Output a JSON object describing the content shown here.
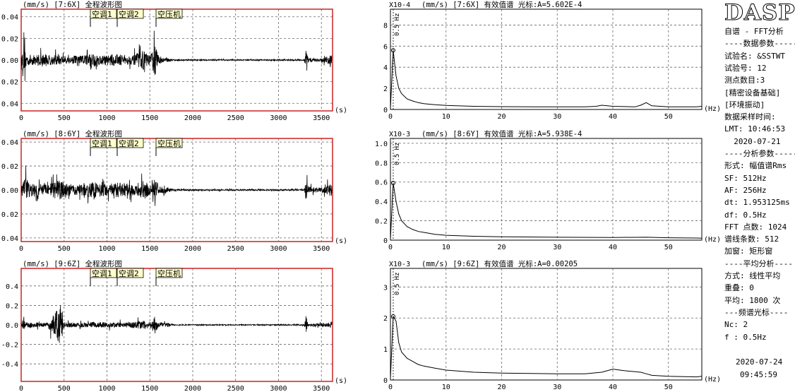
{
  "sidebar": {
    "logo": "DASP",
    "lines": [
      "自谱 - FFT分析",
      "----数据参数-----",
      "试验名: &SSTWT",
      "试验号: 12",
      "测点数目:3",
      "[精密设备基础]",
      "[环境振动]",
      "数据采样时间:",
      "LMT: 10:46:53",
      "  2020-07-21",
      "----分析参数-----",
      "形式: 幅值谱Rms",
      "SF: 512Hz",
      "AF: 256Hz",
      "dt: 1.953125ms",
      "df: 0.5Hz",
      "FFT 点数: 1024",
      "谱线条数: 512",
      "加窗: 矩形窗",
      "----平均分析----",
      "方式: 线性平均",
      "重叠: 0",
      "平均: 1800 次",
      "---频谱光标----",
      "Nc: 2",
      "f : 0.5Hz"
    ],
    "footer_date": "2020-07-24",
    "footer_time": "09:45:59"
  },
  "colors": {
    "frame": "#cc2222",
    "grid": "#666666",
    "trace": "#000000",
    "marker_bg": "#ffffcc"
  },
  "chart_data": [
    {
      "type": "line",
      "kind": "waveform",
      "title": "(mm/s) [7:6X] 全程波形图",
      "xlabel": "(s)",
      "xlim": [
        0,
        3630
      ],
      "ylim": [
        -0.047,
        0.047
      ],
      "xticks": [
        0,
        500,
        1000,
        1500,
        2000,
        2500,
        3000,
        3500
      ],
      "yticks": [
        0.04,
        0.02,
        0.0,
        -0.02,
        -0.04
      ],
      "ytick_labels": [
        "0.04",
        "0.02",
        "0.00",
        "-0.02",
        "-0.04"
      ],
      "markers": [
        {
          "label": "空调1",
          "x": 800
        },
        {
          "label": "空调2",
          "x": 1100
        },
        {
          "label": "空压机",
          "x": 1560
        }
      ],
      "envelope": [
        [
          0,
          0.008
        ],
        [
          30,
          0.03
        ],
        [
          60,
          0.012
        ],
        [
          150,
          0.01
        ],
        [
          250,
          0.014
        ],
        [
          350,
          0.01
        ],
        [
          450,
          0.01
        ],
        [
          550,
          0.008
        ],
        [
          700,
          0.01
        ],
        [
          850,
          0.014
        ],
        [
          900,
          0.01
        ],
        [
          1000,
          0.01
        ],
        [
          1100,
          0.013
        ],
        [
          1200,
          0.01
        ],
        [
          1300,
          0.009
        ],
        [
          1420,
          0.02
        ],
        [
          1500,
          0.01
        ],
        [
          1560,
          0.035
        ],
        [
          1600,
          0.008
        ],
        [
          1700,
          0.004
        ],
        [
          1800,
          0.0015
        ],
        [
          2500,
          0.0012
        ],
        [
          3300,
          0.0015
        ],
        [
          3320,
          0.025
        ],
        [
          3350,
          0.004
        ],
        [
          3500,
          0.003
        ],
        [
          3580,
          0.008
        ],
        [
          3620,
          0.01
        ]
      ]
    },
    {
      "type": "line",
      "kind": "spectrum",
      "title": "(mm/s) [7:6X] 有效值谱 光标:A=5.602E-4",
      "scale": "X10-4",
      "xlabel": "(Hz)",
      "xlim": [
        0,
        56
      ],
      "ylim": [
        0,
        9.5
      ],
      "xticks": [
        0,
        10,
        20,
        30,
        40,
        50
      ],
      "yticks": [
        0,
        2,
        4,
        6,
        8
      ],
      "ytick_labels": [
        "0",
        "2",
        "4",
        "6",
        "8"
      ],
      "cursor_label": "0.5 Hz",
      "cursor_x": 0.5,
      "x": [
        0,
        0.5,
        1,
        1.5,
        2,
        3,
        4,
        5,
        6,
        8,
        10,
        15,
        20,
        30,
        35,
        37,
        38,
        40,
        44,
        45,
        46,
        47,
        50,
        55,
        56
      ],
      "y": [
        0.1,
        5.6,
        3.2,
        2.0,
        1.5,
        1.0,
        0.8,
        0.65,
        0.55,
        0.45,
        0.38,
        0.3,
        0.27,
        0.25,
        0.25,
        0.3,
        0.4,
        0.3,
        0.25,
        0.4,
        0.65,
        0.35,
        0.25,
        0.25,
        0.3
      ]
    },
    {
      "type": "line",
      "kind": "waveform",
      "title": "(mm/s) [8:6Y] 全程波形图",
      "xlabel": "(s)",
      "xlim": [
        0,
        3630
      ],
      "ylim": [
        -0.043,
        0.043
      ],
      "xticks": [
        0,
        500,
        1000,
        1500,
        2000,
        2500,
        3000,
        3500
      ],
      "yticks": [
        0.04,
        0.02,
        0.0,
        -0.02,
        -0.04
      ],
      "ytick_labels": [
        "0.04",
        "0.02",
        "0.00",
        "-0.02",
        "-0.04"
      ],
      "markers": [
        {
          "label": "空调1",
          "x": 800
        },
        {
          "label": "空调2",
          "x": 1100
        },
        {
          "label": "空压机",
          "x": 1560
        }
      ],
      "envelope": [
        [
          0,
          0.006
        ],
        [
          30,
          0.018
        ],
        [
          60,
          0.03
        ],
        [
          100,
          0.012
        ],
        [
          200,
          0.012
        ],
        [
          300,
          0.01
        ],
        [
          460,
          0.02
        ],
        [
          550,
          0.01
        ],
        [
          700,
          0.01
        ],
        [
          850,
          0.015
        ],
        [
          1000,
          0.01
        ],
        [
          1100,
          0.014
        ],
        [
          1300,
          0.01
        ],
        [
          1440,
          0.018
        ],
        [
          1500,
          0.01
        ],
        [
          1560,
          0.03
        ],
        [
          1600,
          0.008
        ],
        [
          1700,
          0.005
        ],
        [
          1800,
          0.0015
        ],
        [
          2500,
          0.0012
        ],
        [
          3300,
          0.0015
        ],
        [
          3320,
          0.02
        ],
        [
          3350,
          0.006
        ],
        [
          3500,
          0.004
        ],
        [
          3580,
          0.01
        ],
        [
          3620,
          0.012
        ]
      ]
    },
    {
      "type": "line",
      "kind": "spectrum",
      "title": "(mm/s) [8:6Y] 有效值谱 光标:A=5.938E-4",
      "scale": "X10-3",
      "xlabel": "(Hz)",
      "xlim": [
        0,
        56
      ],
      "ylim": [
        0,
        1.05
      ],
      "xticks": [
        0,
        10,
        20,
        30,
        40,
        50
      ],
      "yticks": [
        0,
        0.2,
        0.4,
        0.6,
        0.8,
        1.0
      ],
      "ytick_labels": [
        "0",
        "0.2",
        "0.4",
        "0.6",
        "0.8",
        "1.0"
      ],
      "cursor_label": "0.5 Hz",
      "cursor_x": 0.5,
      "x": [
        0,
        0.5,
        1,
        1.5,
        2,
        3,
        4,
        5,
        6,
        8,
        10,
        15,
        20,
        30,
        40,
        46,
        50,
        55,
        56
      ],
      "y": [
        0.01,
        0.59,
        0.4,
        0.27,
        0.2,
        0.14,
        0.11,
        0.09,
        0.08,
        0.06,
        0.05,
        0.04,
        0.035,
        0.03,
        0.028,
        0.03,
        0.025,
        0.022,
        0.02
      ]
    },
    {
      "type": "line",
      "kind": "waveform",
      "title": "(mm/s) [9:6Z] 全程波形图",
      "xlabel": "(s)",
      "xlim": [
        0,
        3630
      ],
      "ylim": [
        -0.58,
        0.58
      ],
      "xticks": [
        0,
        500,
        1000,
        1500,
        2000,
        2500,
        3000,
        3500
      ],
      "yticks": [
        0.4,
        0.2,
        0.0,
        -0.2,
        -0.4
      ],
      "ytick_labels": [
        "0.4",
        "0.2",
        "0.0",
        "-0.2",
        "-0.4"
      ],
      "markers": [
        {
          "label": "空调1",
          "x": 800
        },
        {
          "label": "空调2",
          "x": 1100
        },
        {
          "label": "空压机",
          "x": 1560
        }
      ],
      "envelope": [
        [
          0,
          0.04
        ],
        [
          30,
          0.12
        ],
        [
          60,
          0.06
        ],
        [
          200,
          0.05
        ],
        [
          300,
          0.05
        ],
        [
          470,
          0.48
        ],
        [
          500,
          0.06
        ],
        [
          700,
          0.05
        ],
        [
          850,
          0.07
        ],
        [
          1000,
          0.06
        ],
        [
          1100,
          0.06
        ],
        [
          1200,
          0.05
        ],
        [
          1430,
          0.1
        ],
        [
          1500,
          0.06
        ],
        [
          1560,
          0.2
        ],
        [
          1600,
          0.05
        ],
        [
          1700,
          0.04
        ],
        [
          1800,
          0.012
        ],
        [
          2500,
          0.01
        ],
        [
          3300,
          0.015
        ],
        [
          3320,
          0.2
        ],
        [
          3350,
          0.03
        ],
        [
          3500,
          0.03
        ],
        [
          3580,
          0.06
        ],
        [
          3620,
          0.08
        ]
      ]
    },
    {
      "type": "line",
      "kind": "spectrum",
      "title": "(mm/s) [9:6Z] 有效值谱 光标:A=0.00205",
      "scale": "X10-3",
      "xlabel": "(Hz)",
      "xlim": [
        0,
        56
      ],
      "ylim": [
        0,
        3.6
      ],
      "xticks": [
        0,
        10,
        20,
        30,
        40,
        50
      ],
      "yticks": [
        0,
        1,
        2,
        3
      ],
      "ytick_labels": [
        "0",
        "1",
        "2",
        "3"
      ],
      "cursor_label": "0.5 Hz",
      "cursor_x": 0.5,
      "x": [
        0,
        0.5,
        1,
        1.5,
        2,
        3,
        4,
        5,
        6,
        8,
        10,
        15,
        20,
        30,
        35,
        38,
        40,
        42,
        45,
        46,
        47,
        50,
        55,
        56
      ],
      "y": [
        0.05,
        2.05,
        1.9,
        1.2,
        0.9,
        0.7,
        0.6,
        0.5,
        0.45,
        0.38,
        0.32,
        0.25,
        0.22,
        0.2,
        0.2,
        0.25,
        0.35,
        0.3,
        0.25,
        0.2,
        0.15,
        0.12,
        0.1,
        0.12
      ]
    }
  ]
}
